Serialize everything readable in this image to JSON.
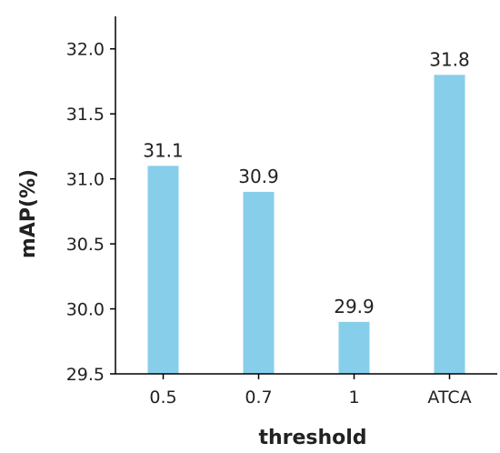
{
  "chart_data": {
    "type": "bar",
    "categories": [
      "0.5",
      "0.7",
      "1",
      "ATCA"
    ],
    "values": [
      31.1,
      30.9,
      29.9,
      31.8
    ],
    "data_labels": [
      "31.1",
      "30.9",
      "29.9",
      "31.8"
    ],
    "title": "",
    "xlabel": "threshold",
    "ylabel": "mAP(%)",
    "ylim": [
      29.5,
      32.25
    ],
    "yticks": [
      29.5,
      30.0,
      30.5,
      31.0,
      31.5,
      32.0
    ],
    "ytick_labels": [
      "29.5",
      "30.0",
      "30.5",
      "31.0",
      "31.5",
      "32.0"
    ],
    "grid": false,
    "legend": "none",
    "bar_color": "#87CEEB",
    "axis_color": "#000000"
  }
}
